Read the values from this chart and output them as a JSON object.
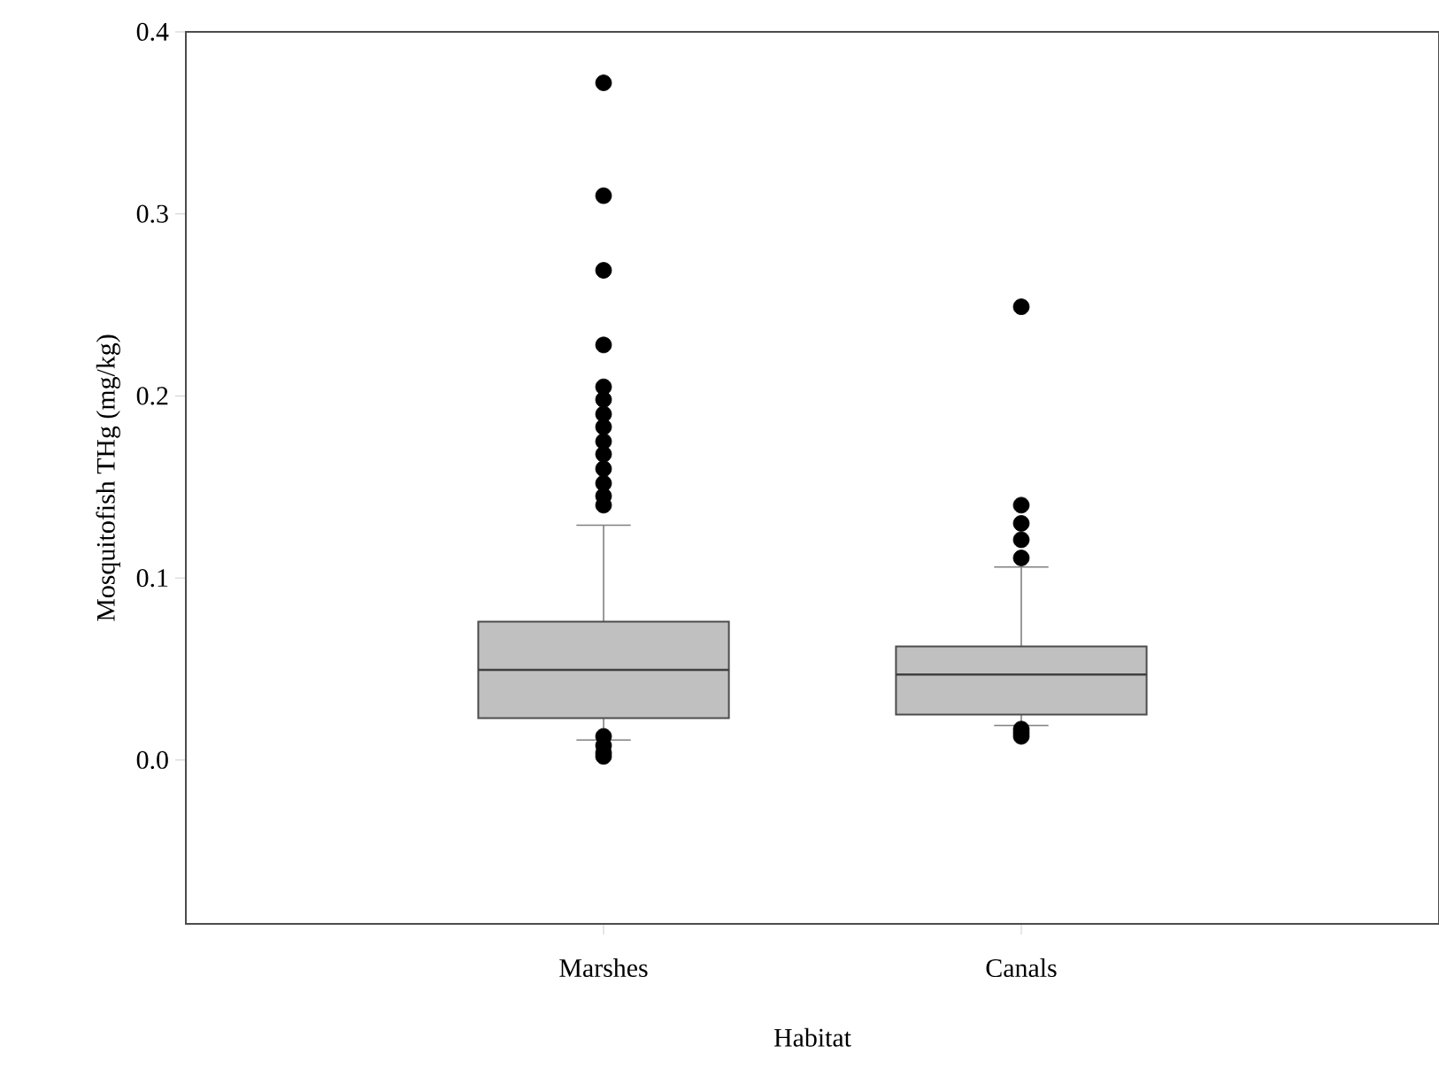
{
  "chart_data": {
    "type": "box",
    "xlabel": "Habitat",
    "ylabel": "Mosquitofish THg (mg/kg)",
    "categories": [
      "Marshes",
      "Canals"
    ],
    "color": "#c0c0c0",
    "ylim": [
      -0.09,
      0.4
    ],
    "yticks": [
      {
        "value": 0,
        "label": "0.0"
      },
      0.1,
      0.2,
      0.3,
      0.4
    ],
    "boxes": [
      {
        "low": 0.011,
        "q1": 0.023,
        "median": 0.0495,
        "q3": 0.076,
        "high": 0.129,
        "outliers": [
          0.372,
          0.31,
          0.269,
          0.228,
          0.205,
          0.198,
          0.19,
          0.183,
          0.175,
          0.168,
          0.16,
          0.152,
          0.145,
          0.14,
          0.013,
          0.008,
          0.004,
          0.002
        ]
      },
      {
        "low": 0.019,
        "q1": 0.025,
        "median": 0.047,
        "q3": 0.0624,
        "high": 0.106,
        "outliers": [
          0.249,
          0.14,
          0.13,
          0.121,
          0.111,
          0.017,
          0.015,
          0.013
        ]
      }
    ]
  }
}
